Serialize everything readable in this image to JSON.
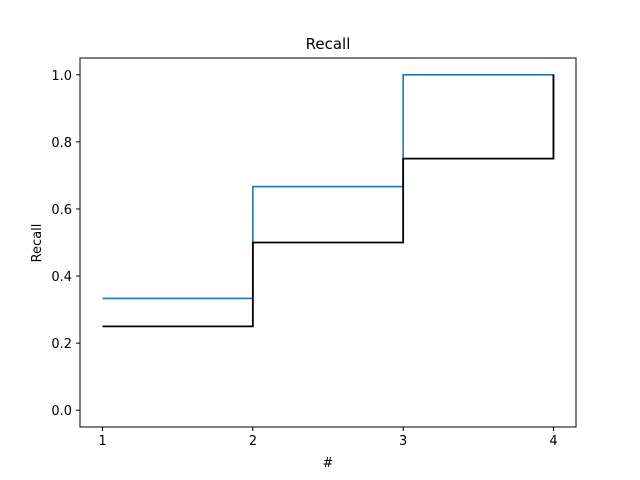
{
  "chart_data": {
    "type": "line",
    "drawstyle": "steps-post",
    "title": "Recall",
    "xlabel": "#",
    "ylabel": "Recall",
    "xlim": [
      0.85,
      4.15
    ],
    "ylim": [
      -0.05,
      1.05
    ],
    "xticks": [
      1,
      2,
      3,
      4
    ],
    "yticks": [
      0.0,
      0.2,
      0.4,
      0.6,
      0.8,
      1.0
    ],
    "grid": false,
    "legend": "none",
    "series": [
      {
        "color": "#1f77b4",
        "x": [
          1,
          2,
          3,
          4
        ],
        "values": [
          0.3333,
          0.6667,
          1.0,
          1.0
        ],
        "final_drop_to": 0.75
      },
      {
        "color": "#000000",
        "x": [
          1,
          2,
          3,
          4
        ],
        "values": [
          0.25,
          0.5,
          0.75,
          0.75
        ],
        "final_rise_to": 1.0
      }
    ]
  }
}
